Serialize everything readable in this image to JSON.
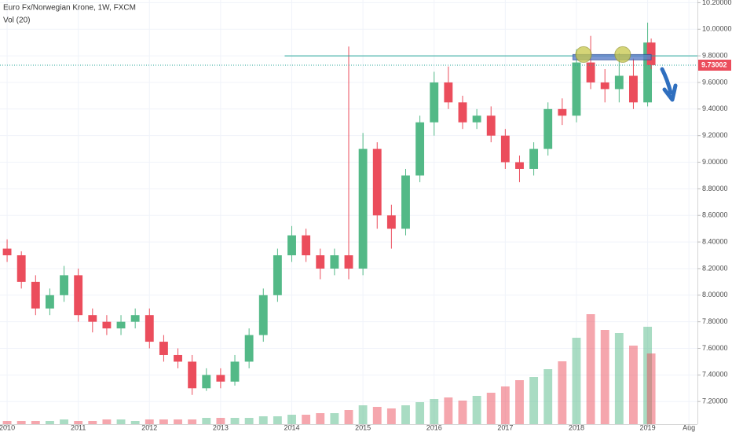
{
  "chart_data": {
    "type": "candlestick",
    "title": "Euro Fx/Norwegian Krone, 1W, FXCM",
    "subtitle": "Vol (20)",
    "xlim": [
      2009.9,
      2019.7
    ],
    "xticks": [
      {
        "value": 2010,
        "label": "2010"
      },
      {
        "value": 2011,
        "label": "2011"
      },
      {
        "value": 2012,
        "label": "2012"
      },
      {
        "value": 2013,
        "label": "2013"
      },
      {
        "value": 2014,
        "label": "2014"
      },
      {
        "value": 2015,
        "label": "2015"
      },
      {
        "value": 2016,
        "label": "2016"
      },
      {
        "value": 2017,
        "label": "2017"
      },
      {
        "value": 2018,
        "label": "2018"
      },
      {
        "value": 2019,
        "label": "2019"
      },
      {
        "value": 2019.58,
        "label": "Aug"
      }
    ],
    "ylim": [
      7.03,
      10.22
    ],
    "yticks": [
      {
        "value": 7.2,
        "label": "7.20000"
      },
      {
        "value": 7.4,
        "label": "7.40000"
      },
      {
        "value": 7.6,
        "label": "7.60000"
      },
      {
        "value": 7.8,
        "label": "7.80000"
      },
      {
        "value": 8.0,
        "label": "8.00000"
      },
      {
        "value": 8.2,
        "label": "8.20000"
      },
      {
        "value": 8.4,
        "label": "8.40000"
      },
      {
        "value": 8.6,
        "label": "8.60000"
      },
      {
        "value": 8.8,
        "label": "8.80000"
      },
      {
        "value": 9.0,
        "label": "9.00000"
      },
      {
        "value": 9.2,
        "label": "9.20000"
      },
      {
        "value": 9.4,
        "label": "9.40000"
      },
      {
        "value": 9.6,
        "label": "9.60000"
      },
      {
        "value": 9.8,
        "label": "9.80000"
      },
      {
        "value": 10.0,
        "label": "10.00000"
      },
      {
        "value": 10.2,
        "label": "10.20000"
      }
    ],
    "grid": true,
    "up_color": "#53b987",
    "down_color": "#eb4d5c",
    "x": [
      2010.0,
      2010.2,
      2010.4,
      2010.6,
      2010.8,
      2011.0,
      2011.2,
      2011.4,
      2011.6,
      2011.8,
      2012.0,
      2012.2,
      2012.4,
      2012.6,
      2012.8,
      2013.0,
      2013.2,
      2013.4,
      2013.6,
      2013.8,
      2014.0,
      2014.2,
      2014.4,
      2014.6,
      2014.8,
      2015.0,
      2015.2,
      2015.4,
      2015.6,
      2015.8,
      2016.0,
      2016.2,
      2016.4,
      2016.6,
      2016.8,
      2017.0,
      2017.2,
      2017.4,
      2017.6,
      2017.8,
      2018.0,
      2018.2,
      2018.4,
      2018.6,
      2018.8,
      2019.0,
      2019.05
    ],
    "open": [
      8.35,
      8.3,
      8.1,
      7.9,
      8.0,
      8.15,
      7.85,
      7.8,
      7.75,
      7.8,
      7.85,
      7.65,
      7.55,
      7.5,
      7.3,
      7.4,
      7.35,
      7.5,
      7.7,
      8.0,
      8.3,
      8.45,
      8.3,
      8.2,
      8.3,
      8.2,
      9.1,
      8.6,
      8.5,
      8.9,
      9.3,
      9.6,
      9.45,
      9.3,
      9.35,
      9.2,
      9.0,
      8.95,
      9.1,
      9.4,
      9.35,
      9.75,
      9.6,
      9.55,
      9.65,
      9.45,
      9.9
    ],
    "high": [
      8.42,
      8.33,
      8.15,
      8.05,
      8.22,
      8.2,
      7.9,
      7.85,
      7.85,
      7.9,
      7.9,
      7.7,
      7.6,
      7.55,
      7.45,
      7.45,
      7.55,
      7.75,
      8.05,
      8.35,
      8.52,
      8.5,
      8.35,
      8.35,
      9.87,
      9.22,
      9.15,
      8.68,
      8.95,
      9.35,
      9.68,
      9.72,
      9.5,
      9.4,
      9.42,
      9.25,
      9.05,
      9.15,
      9.45,
      9.48,
      9.85,
      9.95,
      9.7,
      9.82,
      9.78,
      10.05,
      9.93
    ],
    "low": [
      8.25,
      8.05,
      7.85,
      7.85,
      7.95,
      7.8,
      7.72,
      7.7,
      7.7,
      7.75,
      7.6,
      7.5,
      7.45,
      7.25,
      7.28,
      7.3,
      7.32,
      7.45,
      7.65,
      7.95,
      8.25,
      8.25,
      8.12,
      8.15,
      8.12,
      8.15,
      8.5,
      8.35,
      8.45,
      8.85,
      9.2,
      9.4,
      9.25,
      9.25,
      9.15,
      8.95,
      8.85,
      8.9,
      9.05,
      9.28,
      9.3,
      9.55,
      9.45,
      9.45,
      9.4,
      9.42,
      9.7
    ],
    "close": [
      8.3,
      8.1,
      7.9,
      8.0,
      8.15,
      7.85,
      7.8,
      7.75,
      7.8,
      7.85,
      7.65,
      7.55,
      7.5,
      7.3,
      7.4,
      7.35,
      7.5,
      7.7,
      8.0,
      8.3,
      8.45,
      8.3,
      8.2,
      8.3,
      8.2,
      9.1,
      8.6,
      8.5,
      8.9,
      9.3,
      9.6,
      9.45,
      9.3,
      9.35,
      9.2,
      9.0,
      8.95,
      9.1,
      9.4,
      9.35,
      9.75,
      9.6,
      9.55,
      9.65,
      9.45,
      9.9,
      9.73
    ],
    "volume": [
      2,
      2,
      2,
      2,
      3,
      2,
      2,
      3,
      3,
      2,
      3,
      3,
      3,
      3,
      4,
      4,
      4,
      4,
      5,
      5,
      6,
      6,
      7,
      7,
      9,
      12,
      11,
      10,
      12,
      14,
      16,
      17,
      15,
      18,
      20,
      24,
      28,
      30,
      35,
      40,
      55,
      70,
      60,
      58,
      50,
      62,
      45
    ],
    "resistance_line": {
      "value": 9.8,
      "start": 2013.9,
      "color": "#26a69a"
    },
    "zone": {
      "low": 9.77,
      "high": 9.81,
      "start": 2017.95,
      "end": 2019.05,
      "color": "#5b7fc7"
    },
    "touches": {
      "x": [
        2018.1,
        2018.65
      ],
      "y": [
        9.81,
        9.81
      ],
      "color": "#c8c84a"
    },
    "last_price": {
      "value": 9.73002,
      "label": "9.73002",
      "color": "#eb4d5c"
    }
  }
}
